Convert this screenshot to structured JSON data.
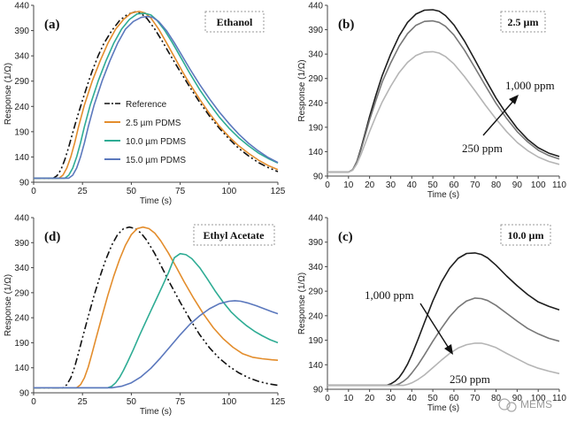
{
  "watermark": "MEMS",
  "chart_data": [
    {
      "type": "line",
      "panel_label": "(a)",
      "box_label": "Ethanol",
      "xlabel": "Time (s)",
      "ylabel": "Response (1/Ω)",
      "xlim": [
        0,
        125
      ],
      "ylim": [
        90,
        440
      ],
      "xticks": [
        0,
        25,
        50,
        75,
        100,
        125
      ],
      "yticks": [
        90,
        140,
        190,
        240,
        290,
        340,
        390,
        440
      ],
      "grid": false,
      "legend_position": "center-left",
      "series": [
        {
          "name": "Reference",
          "color": "#111111",
          "dash": "8,3,2,3,2,3",
          "x": [
            0,
            10,
            12,
            14,
            16,
            18,
            20,
            22,
            25,
            28,
            30,
            33,
            36,
            40,
            44,
            48,
            52,
            55,
            58,
            62,
            66,
            70,
            75,
            80,
            85,
            90,
            95,
            100,
            105,
            110,
            115,
            120,
            125
          ],
          "y": [
            98,
            98,
            103,
            115,
            135,
            160,
            188,
            215,
            252,
            288,
            310,
            340,
            365,
            390,
            410,
            422,
            427,
            424,
            414,
            393,
            368,
            341,
            309,
            278,
            248,
            221,
            197,
            176,
            157,
            142,
            129,
            119,
            111
          ]
        },
        {
          "name": "2.5 µm PDMS",
          "color": "#e38d2c",
          "dash": "",
          "x": [
            0,
            13,
            15,
            17,
            19,
            21,
            23,
            26,
            30,
            34,
            38,
            42,
            46,
            50,
            54,
            57,
            60,
            64,
            68,
            72,
            76,
            80,
            85,
            90,
            95,
            100,
            105,
            110,
            115,
            120,
            125
          ],
          "y": [
            98,
            98,
            104,
            118,
            140,
            168,
            200,
            243,
            290,
            330,
            365,
            393,
            412,
            425,
            428,
            425,
            415,
            393,
            366,
            338,
            310,
            284,
            254,
            226,
            201,
            180,
            162,
            147,
            134,
            123,
            115
          ]
        },
        {
          "name": "10.0 µm PDMS",
          "color": "#2eac94",
          "dash": "",
          "x": [
            0,
            16,
            18,
            20,
            22,
            24,
            26,
            29,
            33,
            37,
            41,
            45,
            49,
            53,
            57,
            60,
            63,
            67,
            71,
            75,
            80,
            85,
            90,
            95,
            100,
            105,
            110,
            115,
            120,
            125
          ],
          "y": [
            98,
            98,
            104,
            118,
            140,
            168,
            200,
            243,
            290,
            330,
            365,
            393,
            412,
            423,
            424,
            421,
            411,
            391,
            366,
            339,
            305,
            273,
            245,
            219,
            197,
            178,
            162,
            148,
            137,
            128
          ]
        },
        {
          "name": "15.0 µm PDMS",
          "color": "#5b78bd",
          "dash": "",
          "x": [
            0,
            18,
            20,
            22,
            24,
            26,
            28,
            31,
            35,
            39,
            43,
            47,
            51,
            55,
            58,
            61,
            64,
            68,
            72,
            76,
            80,
            85,
            90,
            95,
            100,
            105,
            110,
            115,
            120,
            125
          ],
          "y": [
            98,
            98,
            104,
            118,
            140,
            168,
            200,
            243,
            290,
            330,
            365,
            393,
            408,
            416,
            418,
            416,
            408,
            390,
            366,
            340,
            314,
            283,
            255,
            229,
            206,
            185,
            167,
            152,
            139,
            129
          ]
        }
      ]
    },
    {
      "type": "line",
      "panel_label": "(b)",
      "box_label": "2.5 µm",
      "xlabel": "Time (s)",
      "ylabel": "Response (1/Ω)",
      "xlim": [
        0,
        110
      ],
      "ylim": [
        90,
        440
      ],
      "xticks": [
        0,
        10,
        20,
        30,
        40,
        50,
        60,
        70,
        80,
        90,
        100,
        110
      ],
      "yticks": [
        90,
        140,
        190,
        240,
        290,
        340,
        390,
        440
      ],
      "grid": false,
      "annotations": [
        {
          "text": "1,000 ppm"
        },
        {
          "text": "250 ppm"
        }
      ],
      "series": [
        {
          "color": "#1e1e1e",
          "x": [
            0,
            10,
            12,
            14,
            16,
            18,
            20,
            23,
            26,
            30,
            34,
            38,
            42,
            46,
            50,
            53,
            56,
            60,
            65,
            70,
            75,
            80,
            85,
            90,
            95,
            100,
            105,
            110
          ],
          "y": [
            98,
            98,
            103,
            120,
            148,
            180,
            212,
            256,
            296,
            340,
            377,
            405,
            422,
            430,
            431,
            428,
            419,
            400,
            367,
            328,
            288,
            250,
            217,
            188,
            165,
            148,
            137,
            130
          ]
        },
        {
          "color": "#777777",
          "x": [
            0,
            10,
            12,
            14,
            16,
            18,
            20,
            23,
            26,
            30,
            34,
            38,
            42,
            46,
            50,
            53,
            56,
            60,
            65,
            70,
            75,
            80,
            85,
            90,
            95,
            100,
            105,
            110
          ],
          "y": [
            98,
            98,
            103,
            119,
            145,
            175,
            205,
            245,
            283,
            322,
            356,
            382,
            399,
            407,
            408,
            405,
            397,
            379,
            348,
            312,
            275,
            239,
            208,
            181,
            160,
            143,
            132,
            125
          ]
        },
        {
          "color": "#b5b5b5",
          "x": [
            0,
            10,
            12,
            14,
            16,
            18,
            20,
            23,
            26,
            30,
            34,
            38,
            42,
            46,
            50,
            53,
            56,
            60,
            65,
            70,
            75,
            80,
            85,
            90,
            95,
            100,
            105,
            110
          ],
          "y": [
            98,
            98,
            102,
            115,
            135,
            158,
            181,
            213,
            242,
            274,
            302,
            323,
            337,
            344,
            345,
            342,
            335,
            320,
            294,
            265,
            235,
            207,
            181,
            159,
            142,
            129,
            120,
            114
          ]
        }
      ]
    },
    {
      "type": "line",
      "panel_label": "(d)",
      "box_label": "Ethyl Acetate",
      "xlabel": "Time (s)",
      "ylabel": "Response (1/Ω)",
      "xlim": [
        0,
        125
      ],
      "ylim": [
        90,
        440
      ],
      "xticks": [
        0,
        25,
        50,
        75,
        100,
        125
      ],
      "yticks": [
        90,
        140,
        190,
        240,
        290,
        340,
        390,
        440
      ],
      "grid": false,
      "series": [
        {
          "name": "Reference",
          "color": "#111111",
          "dash": "8,3,2,3,2,3",
          "x": [
            0,
            15,
            17,
            19,
            21,
            23,
            25,
            28,
            31,
            34,
            37,
            40,
            43,
            46,
            49,
            52,
            55,
            58,
            62,
            66,
            70,
            75,
            80,
            85,
            90,
            95,
            100,
            105,
            110,
            115,
            120,
            125
          ],
          "y": [
            100,
            100,
            106,
            120,
            142,
            170,
            200,
            243,
            285,
            323,
            357,
            385,
            406,
            418,
            421,
            418,
            409,
            394,
            368,
            338,
            307,
            271,
            237,
            206,
            180,
            159,
            143,
            130,
            120,
            113,
            108,
            105
          ]
        },
        {
          "name": "2.5 µm PDMS",
          "color": "#e38d2c",
          "dash": "",
          "x": [
            0,
            22,
            24,
            26,
            28,
            30,
            32,
            35,
            38,
            41,
            44,
            47,
            50,
            53,
            56,
            59,
            62,
            65,
            69,
            73,
            77,
            82,
            87,
            92,
            97,
            102,
            107,
            112,
            117,
            122,
            125
          ],
          "y": [
            100,
            100,
            106,
            120,
            142,
            170,
            200,
            243,
            285,
            323,
            357,
            385,
            406,
            418,
            421,
            418,
            409,
            394,
            369,
            341,
            312,
            278,
            247,
            220,
            198,
            181,
            168,
            161,
            158,
            156,
            155
          ]
        },
        {
          "name": "10.0 µm PDMS",
          "color": "#2eac94",
          "dash": "",
          "x": [
            0,
            38,
            40,
            42,
            44,
            46,
            48,
            51,
            54,
            57,
            60,
            63,
            66,
            69,
            72,
            75,
            78,
            81,
            85,
            89,
            93,
            97,
            101,
            105,
            109,
            113,
            117,
            121,
            125
          ],
          "y": [
            100,
            100,
            103,
            110,
            121,
            135,
            151,
            176,
            203,
            229,
            254,
            279,
            304,
            330,
            360,
            368,
            366,
            358,
            340,
            317,
            293,
            271,
            252,
            237,
            224,
            213,
            204,
            196,
            190
          ]
        },
        {
          "name": "15.0 µm PDMS",
          "color": "#5b78bd",
          "dash": "",
          "x": [
            0,
            40,
            45,
            50,
            55,
            60,
            65,
            70,
            75,
            80,
            85,
            90,
            95,
            100,
            103,
            106,
            110,
            114,
            118,
            122,
            125
          ],
          "y": [
            100,
            100,
            103,
            110,
            122,
            139,
            160,
            183,
            206,
            227,
            244,
            258,
            268,
            273,
            274,
            273,
            269,
            264,
            258,
            252,
            248
          ]
        }
      ]
    },
    {
      "type": "line",
      "panel_label": "(c)",
      "box_label": "10.0 µm",
      "xlabel": "Time (s)",
      "ylabel": "Response (1/Ω)",
      "xlim": [
        0,
        110
      ],
      "ylim": [
        90,
        440
      ],
      "xticks": [
        0,
        10,
        20,
        30,
        40,
        50,
        60,
        70,
        80,
        90,
        100,
        110
      ],
      "yticks": [
        90,
        140,
        190,
        240,
        290,
        340,
        390,
        440
      ],
      "grid": false,
      "annotations": [
        {
          "text": "1,000 ppm"
        },
        {
          "text": "250 ppm"
        }
      ],
      "series": [
        {
          "color": "#1e1e1e",
          "x": [
            0,
            28,
            30,
            32,
            34,
            36,
            38,
            40,
            43,
            46,
            50,
            54,
            58,
            62,
            66,
            70,
            73,
            76,
            80,
            85,
            90,
            95,
            100,
            105,
            110
          ],
          "y": [
            98,
            98,
            101,
            106,
            114,
            126,
            141,
            160,
            192,
            226,
            270,
            308,
            337,
            357,
            367,
            368,
            365,
            358,
            343,
            321,
            301,
            283,
            268,
            259,
            252
          ]
        },
        {
          "color": "#777777",
          "x": [
            0,
            32,
            34,
            36,
            38,
            40,
            43,
            46,
            50,
            54,
            58,
            62,
            66,
            70,
            73,
            76,
            80,
            85,
            90,
            95,
            100,
            105,
            110
          ],
          "y": [
            98,
            98,
            101,
            106,
            113,
            123,
            140,
            160,
            188,
            214,
            238,
            257,
            270,
            276,
            275,
            271,
            261,
            245,
            229,
            214,
            203,
            194,
            188
          ]
        },
        {
          "color": "#b5b5b5",
          "x": [
            0,
            36,
            38,
            40,
            43,
            46,
            50,
            54,
            58,
            62,
            66,
            70,
            73,
            76,
            80,
            85,
            90,
            95,
            100,
            105,
            110
          ],
          "y": [
            98,
            98,
            100,
            103,
            110,
            119,
            134,
            149,
            163,
            174,
            181,
            184,
            184,
            181,
            175,
            163,
            152,
            141,
            133,
            127,
            122
          ]
        }
      ]
    }
  ]
}
